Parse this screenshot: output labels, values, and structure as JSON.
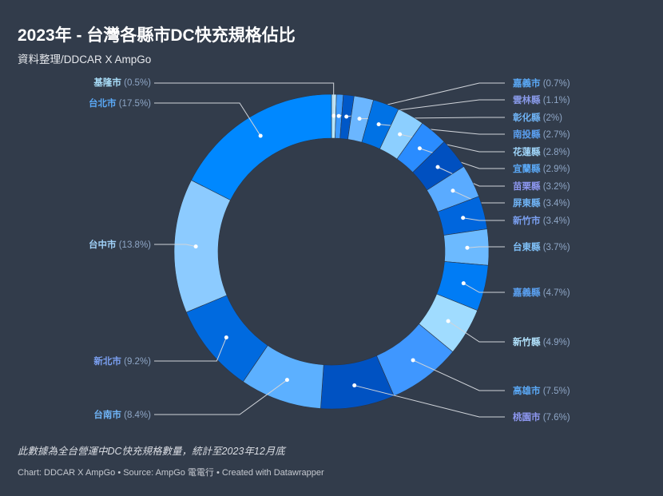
{
  "title": "2023年 - 台灣各縣市DC快充規格佔比",
  "subtitle": "資料整理/DDCAR X AmpGo",
  "note": "此數據為全台營運中DC快充規格數量，統計至2023年12月底",
  "footer": "Chart: DDCAR X AmpGo • Source: AmpGo 電電行 • Created with Datawrapper",
  "chart_data": {
    "type": "pie",
    "variant": "donut",
    "unit": "%",
    "start": "top, clockwise",
    "slices": [
      {
        "label": "基隆市",
        "value": 0.5,
        "color": "#b5e6ff",
        "label_color": "#a8dcf7"
      },
      {
        "label": "嘉義市",
        "value": 0.7,
        "color": "#3d9bff",
        "label_color": "#5aa8f5"
      },
      {
        "label": "雲林縣",
        "value": 1.1,
        "color": "#0058c8",
        "label_color": "#8899e8"
      },
      {
        "label": "彰化縣",
        "value": 2,
        "color": "#6bb6ff",
        "label_color": "#6fb3f5"
      },
      {
        "label": "南投縣",
        "value": 2.7,
        "color": "#0072e5",
        "label_color": "#5a9ff0"
      },
      {
        "label": "花蓮縣",
        "value": 2.8,
        "color": "#8ccfff",
        "label_color": "#9fd5fa"
      },
      {
        "label": "宜蘭縣",
        "value": 2.9,
        "color": "#2a8cff",
        "label_color": "#5aa8f5"
      },
      {
        "label": "苗栗縣",
        "value": 3.2,
        "color": "#0050c0",
        "label_color": "#8c96ee"
      },
      {
        "label": "屏東縣",
        "value": 3.4,
        "color": "#5aabff",
        "label_color": "#6fb3f5"
      },
      {
        "label": "新竹市",
        "value": 3.4,
        "color": "#0066dd",
        "label_color": "#7a9ff0"
      },
      {
        "label": "台東縣",
        "value": 3.7,
        "color": "#6cbaff",
        "label_color": "#7fc0f8"
      },
      {
        "label": "嘉義縣",
        "value": 4.7,
        "color": "#007cf5",
        "label_color": "#5aa0f0"
      },
      {
        "label": "新竹縣",
        "value": 4.9,
        "color": "#a0dcff",
        "label_color": "#b0e0fa"
      },
      {
        "label": "高雄市",
        "value": 7.5,
        "color": "#3f97ff",
        "label_color": "#5aa8f5"
      },
      {
        "label": "桃園市",
        "value": 7.6,
        "color": "#0052c2",
        "label_color": "#8c96ee"
      },
      {
        "label": "台南市",
        "value": 8.4,
        "color": "#5cb0ff",
        "label_color": "#6fb3f5"
      },
      {
        "label": "新北市",
        "value": 9.2,
        "color": "#006adf",
        "label_color": "#7a9ff0"
      },
      {
        "label": "台中市",
        "value": 13.8,
        "color": "#8ccbff",
        "label_color": "#9fd0f8"
      },
      {
        "label": "台北市",
        "value": 17.5,
        "color": "#0088ff",
        "label_color": "#5aa8f5"
      }
    ]
  }
}
